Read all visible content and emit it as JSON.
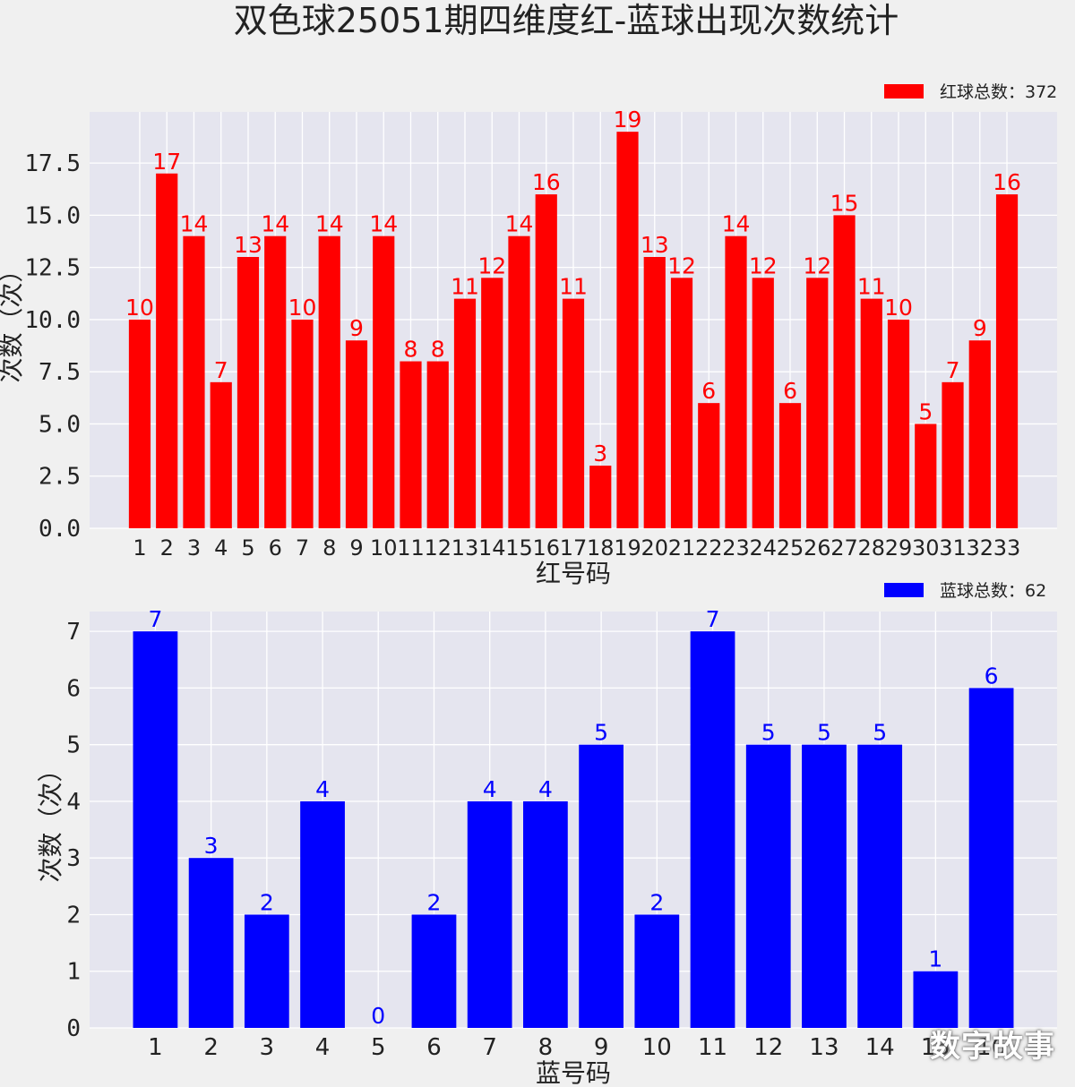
{
  "title": "双色球25051期四维度红-蓝球出现次数统计",
  "watermark": "数字故事",
  "chart_data": [
    {
      "type": "bar",
      "name": "red",
      "color": "#ff0000",
      "legend_label": "红球总数：372",
      "legend_position": "top-right",
      "xlabel": "红号码",
      "ylabel": "次数（次）",
      "ylim": [
        0,
        19.95
      ],
      "yticks": [
        0.0,
        2.5,
        5.0,
        7.5,
        10.0,
        12.5,
        15.0,
        17.5
      ],
      "ytick_labels": [
        "0.0",
        "2.5",
        "5.0",
        "7.5",
        "10.0",
        "12.5",
        "15.0",
        "17.5"
      ],
      "grid": true,
      "categories": [
        "1",
        "2",
        "3",
        "4",
        "5",
        "6",
        "7",
        "8",
        "9",
        "10",
        "11",
        "12",
        "13",
        "14",
        "15",
        "16",
        "17",
        "18",
        "19",
        "20",
        "21",
        "22",
        "23",
        "24",
        "25",
        "26",
        "27",
        "28",
        "29",
        "30",
        "31",
        "32",
        "33"
      ],
      "values": [
        10,
        17,
        14,
        7,
        13,
        14,
        10,
        14,
        9,
        14,
        8,
        8,
        11,
        12,
        14,
        16,
        11,
        3,
        19,
        13,
        12,
        6,
        14,
        12,
        6,
        12,
        15,
        11,
        10,
        5,
        7,
        9,
        16
      ]
    },
    {
      "type": "bar",
      "name": "blue",
      "color": "#0000ff",
      "legend_label": "蓝球总数：62",
      "legend_position": "top-right",
      "xlabel": "蓝号码",
      "ylabel": "次数（次）",
      "ylim": [
        0,
        7.35
      ],
      "yticks": [
        0,
        1,
        2,
        3,
        4,
        5,
        6,
        7
      ],
      "ytick_labels": [
        "0",
        "1",
        "2",
        "3",
        "4",
        "5",
        "6",
        "7"
      ],
      "grid": true,
      "categories": [
        "1",
        "2",
        "3",
        "4",
        "5",
        "6",
        "7",
        "8",
        "9",
        "10",
        "11",
        "12",
        "13",
        "14",
        "15",
        "16"
      ],
      "values": [
        7,
        3,
        2,
        4,
        0,
        2,
        4,
        4,
        5,
        2,
        7,
        5,
        5,
        5,
        1,
        6
      ]
    }
  ]
}
